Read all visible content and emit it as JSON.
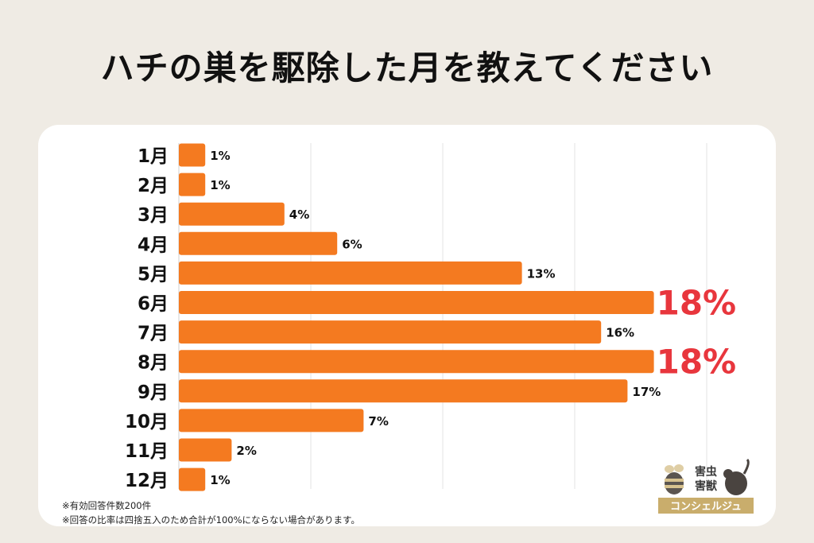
{
  "title": "ハチの巣を駆除した月を教えてください",
  "notes": [
    "※有効回答件数200件",
    "※回答の比率は四捨五入のため合計が100%にならない場合があります。"
  ],
  "logo": {
    "line1": "害虫",
    "line2": "害獣",
    "line3": "コンシェルジュ"
  },
  "colors": {
    "bar": "#f47a20",
    "highlight": "#e8363d",
    "label": "#111111",
    "grid": "#e3e3e3"
  },
  "chart_data": {
    "type": "bar",
    "orientation": "horizontal",
    "categories": [
      "1月",
      "2月",
      "3月",
      "4月",
      "5月",
      "6月",
      "7月",
      "8月",
      "9月",
      "10月",
      "11月",
      "12月"
    ],
    "values": [
      1,
      1,
      4,
      6,
      13,
      18,
      16,
      18,
      17,
      7,
      2,
      1
    ],
    "value_labels": [
      "1%",
      "1%",
      "4%",
      "6%",
      "13%",
      "18%",
      "16%",
      "18%",
      "17%",
      "7%",
      "2%",
      "1%"
    ],
    "highlighted": [
      "6月",
      "8月"
    ],
    "xlim": [
      0,
      20
    ],
    "grid": true
  }
}
